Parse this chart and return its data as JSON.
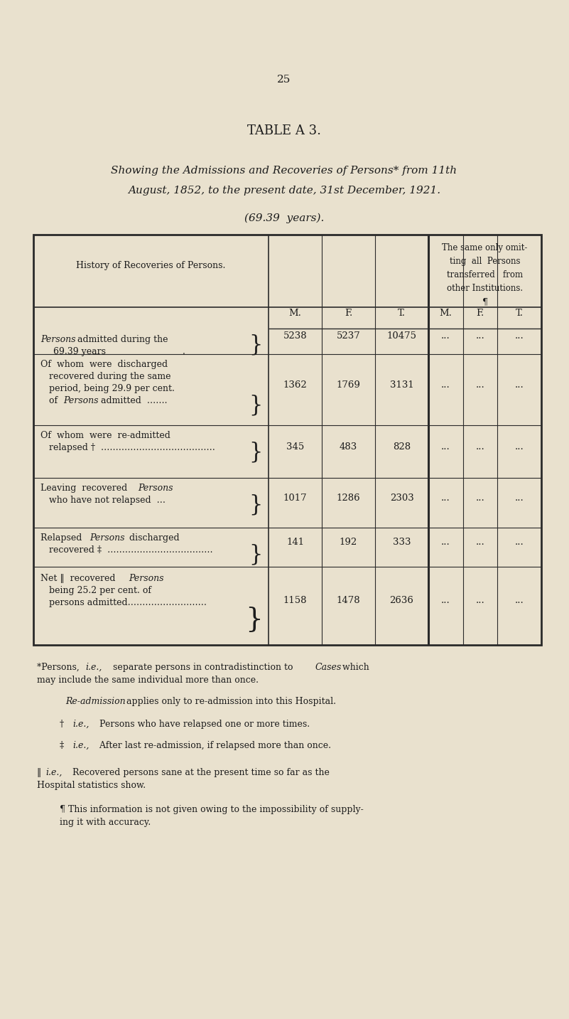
{
  "page_number": "25",
  "table_title": "TABLE A 3.",
  "subtitle_line1": "Showing the Admissions and Recoveries of Persons* from 11th",
  "subtitle_line2": "August, 1852, to the present date, 31st December, 1921.",
  "subtitle_line3": "(69.39  years).",
  "col_header_left": "History of Recoveries of Persons.",
  "col_header_right_line1": "The same only omit-",
  "col_header_right_line2": "ting  all  Persons",
  "col_header_right_line3": "transferred   from",
  "col_header_right_line4": "other Institutions.",
  "col_header_right_symbol": "¶",
  "sub_headers": [
    "M.",
    "F.",
    "T.",
    "M.",
    "F.",
    "T."
  ],
  "rows": [
    {
      "label_parts": [
        [
          "Persons",
          true
        ],
        [
          " admitted during the",
          false
        ]
      ],
      "label_line2": "  69.39 years                     ",
      "values": [
        "5238",
        "5237",
        "10475",
        "...",
        "...",
        "..."
      ]
    },
    {
      "label_parts": [
        [
          "Of whom were discharged",
          false
        ]
      ],
      "label_line2": "  recovered during the same",
      "label_line3": "  period, being 29.9 per cent.",
      "label_line4_parts": [
        [
          "  of ",
          false
        ],
        [
          "Persons",
          true
        ],
        [
          " admitted  …….",
          false
        ]
      ],
      "values": [
        "1362",
        "1769",
        "3131",
        "...",
        "...",
        "..."
      ]
    },
    {
      "label_parts": [
        [
          "Of whom were re-admitted",
          false
        ]
      ],
      "label_line2": "  relapsed †  ………………………",
      "values": [
        "345",
        "483",
        "828",
        "...",
        "...",
        "..."
      ]
    },
    {
      "label_parts": [
        [
          "Leaving recovered ",
          false
        ],
        [
          "Persons",
          true
        ]
      ],
      "label_line2": "  who have not relapsed  …",
      "values": [
        "1017",
        "1286",
        "2303",
        "...",
        "...",
        "..."
      ]
    },
    {
      "label_parts": [
        [
          "Relapsed ",
          false
        ],
        [
          "Persons",
          true
        ],
        [
          " discharged",
          false
        ]
      ],
      "label_line2": "  recovered ‡  ………………………",
      "values": [
        "141",
        "192",
        "333",
        "...",
        "...",
        "..."
      ]
    },
    {
      "label_parts": [
        [
          "Net ‖ recovered ",
          false
        ],
        [
          "Persons",
          true
        ]
      ],
      "label_line2": "  being 25.2 per cent. of",
      "label_line3": "  persons admitted………………",
      "values": [
        "1158",
        "1478",
        "2636",
        "...",
        "...",
        "..."
      ]
    }
  ],
  "bg_color": "#e9e1ce",
  "text_color": "#1c1c1c",
  "line_color": "#2a2a2a"
}
